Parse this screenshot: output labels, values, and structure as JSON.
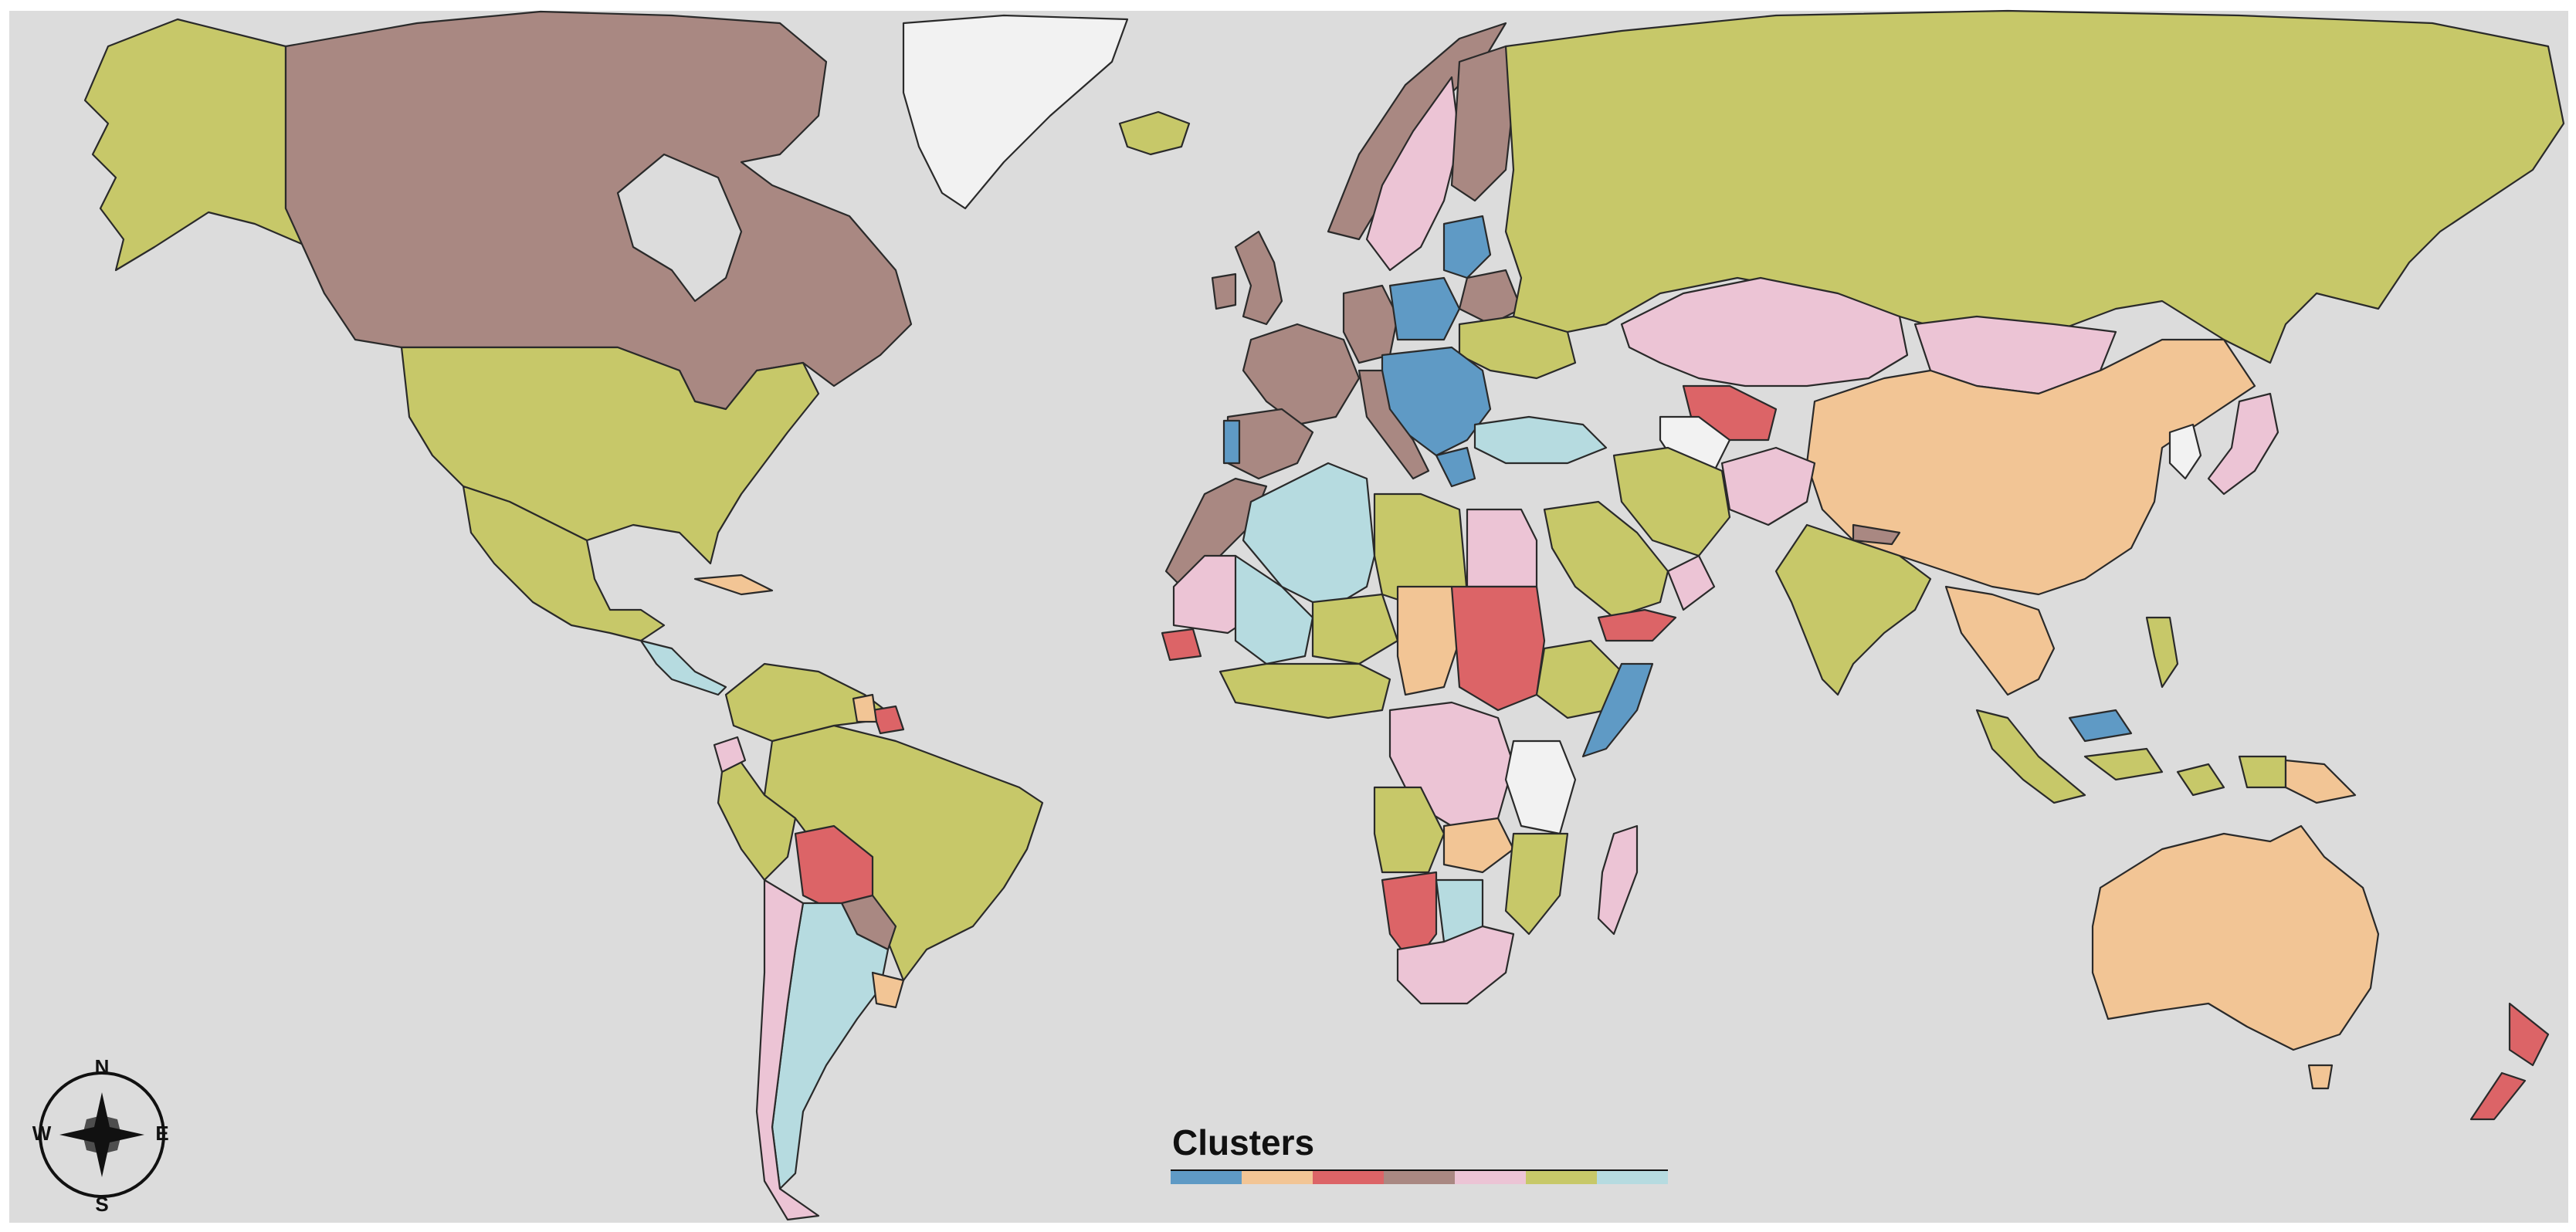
{
  "legend": {
    "title": "Clusters",
    "colors": [
      "#5f9ac5",
      "#f2c595",
      "#dc6467",
      "#a98882",
      "#ecc4d5",
      "#c7c869",
      "#b6dbe0"
    ]
  },
  "compass": {
    "n": "N",
    "s": "S",
    "e": "E",
    "w": "W"
  },
  "colors": {
    "ocean": "#dcdcdc",
    "no_data": "#f2f2f2",
    "c1_blue": "#5f9ac5",
    "c2_peach": "#f2c595",
    "c3_red": "#dc6467",
    "c4_brown": "#a98882",
    "c5_pink": "#ecc4d5",
    "c6_olive": "#c7c869",
    "c7_lightblue": "#b6dbe0"
  }
}
